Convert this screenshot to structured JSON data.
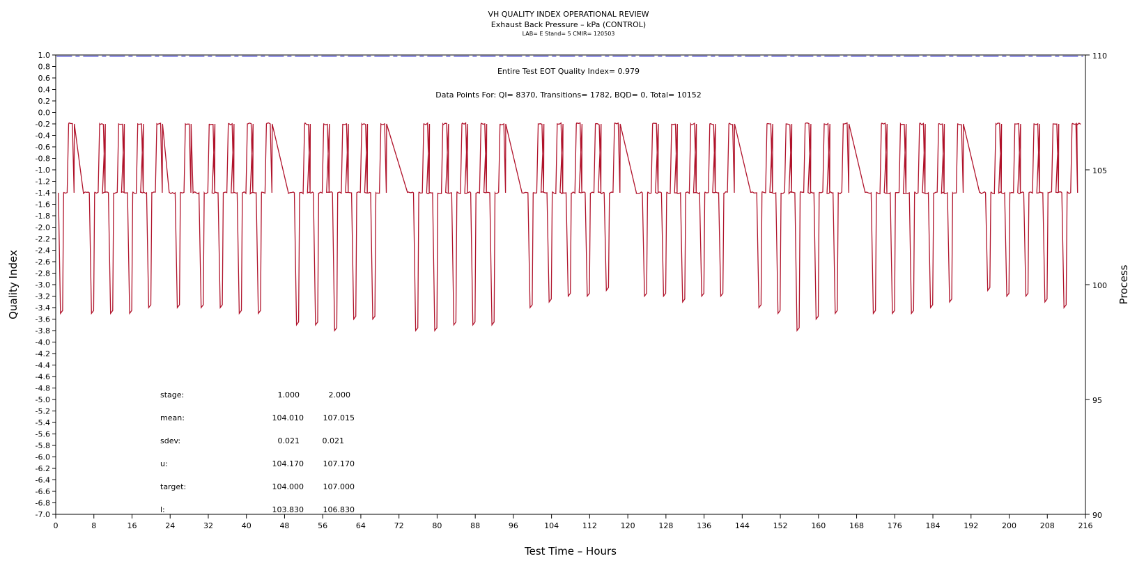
{
  "chart_data": {
    "type": "line",
    "title": "VH QUALITY INDEX OPERATIONAL REVIEW",
    "subtitle": "Exhaust Back Pressure – kPa (CONTROL)",
    "meta": "LAB= E Stand= 5 CMIR= 120503",
    "xlabel": "Test Time – Hours",
    "ylabel": "Quality Index",
    "y2label": "Process",
    "xlim": [
      0,
      216
    ],
    "ylim": [
      -7.0,
      1.0
    ],
    "y2lim": [
      90,
      110
    ],
    "x_ticks": [
      "0",
      "8",
      "16",
      "24",
      "32",
      "40",
      "48",
      "56",
      "64",
      "72",
      "80",
      "88",
      "96",
      "104",
      "112",
      "120",
      "128",
      "136",
      "144",
      "152",
      "160",
      "168",
      "176",
      "184",
      "192",
      "200",
      "208",
      "216"
    ],
    "y_ticks": [
      "1.0",
      "0.8",
      "0.6",
      "0.4",
      "0.2",
      "0.0",
      "-0.2",
      "-0.4",
      "-0.6",
      "-0.8",
      "-1.0",
      "-1.2",
      "-1.4",
      "-1.6",
      "-1.8",
      "-2.0",
      "-2.2",
      "-2.4",
      "-2.6",
      "-2.8",
      "-3.0",
      "-3.2",
      "-3.4",
      "-3.6",
      "-3.8",
      "-4.0",
      "-4.2",
      "-4.4",
      "-4.6",
      "-4.8",
      "-5.0",
      "-5.2",
      "-5.4",
      "-5.6",
      "-5.8",
      "-6.0",
      "-6.2",
      "-6.4",
      "-6.6",
      "-6.8",
      "-7.0"
    ],
    "y2_ticks": [
      "110",
      "105",
      "100",
      "95",
      "90"
    ],
    "annotations": {
      "quality_index": "Entire Test EOT Quality Index=   0.979",
      "data_points": "Data Points For: QI=  8370, Transitions=  1782, BQD=     0, Total= 10152"
    },
    "quality_index_line": {
      "value": 0.979,
      "color": "#3b3bd6",
      "style": "dashed"
    },
    "process_series": {
      "color": "#b0132b",
      "low_level": 104.0,
      "high_level": 107.0,
      "cycles": [
        {
          "start": 0.5,
          "drop": 3.5,
          "rise": 2.5
        },
        {
          "start": 7.0,
          "drop": 3.5,
          "rise": 2.5
        },
        {
          "start": 11.0,
          "drop": 3.5,
          "rise": 2.5
        },
        {
          "start": 15.0,
          "drop": 3.5,
          "rise": 2.5
        },
        {
          "start": 19.0,
          "drop": 3.4,
          "rise": 2.5
        },
        {
          "start": 25.0,
          "drop": 3.4,
          "rise": 2.5
        },
        {
          "start": 30.0,
          "drop": 3.4,
          "rise": 2.5
        },
        {
          "start": 34.0,
          "drop": 3.4,
          "rise": 2.5
        },
        {
          "start": 38.0,
          "drop": 3.5,
          "rise": 2.5
        },
        {
          "start": 42.0,
          "drop": 3.5,
          "rise": 2.5
        },
        {
          "start": 50.0,
          "drop": 3.7,
          "rise": 2.5
        },
        {
          "start": 54.0,
          "drop": 3.7,
          "rise": 2.5
        },
        {
          "start": 58.0,
          "drop": 3.8,
          "rise": 2.5
        },
        {
          "start": 62.0,
          "drop": 3.6,
          "rise": 2.5
        },
        {
          "start": 66.0,
          "drop": 3.6,
          "rise": 2.5
        },
        {
          "start": 75.0,
          "drop": 3.8,
          "rise": 2.5
        },
        {
          "start": 79.0,
          "drop": 3.8,
          "rise": 2.5
        },
        {
          "start": 83.0,
          "drop": 3.7,
          "rise": 2.5
        },
        {
          "start": 87.0,
          "drop": 3.7,
          "rise": 2.5
        },
        {
          "start": 91.0,
          "drop": 3.7,
          "rise": 2.5
        },
        {
          "start": 99.0,
          "drop": 3.4,
          "rise": 2.5
        },
        {
          "start": 103.0,
          "drop": 3.3,
          "rise": 2.5
        },
        {
          "start": 107.0,
          "drop": 3.2,
          "rise": 2.5
        },
        {
          "start": 111.0,
          "drop": 3.2,
          "rise": 2.5
        },
        {
          "start": 115.0,
          "drop": 3.1,
          "rise": 2.5
        },
        {
          "start": 123.0,
          "drop": 3.2,
          "rise": 2.5
        },
        {
          "start": 127.0,
          "drop": 3.2,
          "rise": 2.5
        },
        {
          "start": 131.0,
          "drop": 3.3,
          "rise": 2.5
        },
        {
          "start": 135.0,
          "drop": 3.2,
          "rise": 2.5
        },
        {
          "start": 139.0,
          "drop": 3.2,
          "rise": 2.5
        },
        {
          "start": 147.0,
          "drop": 3.4,
          "rise": 2.5
        },
        {
          "start": 151.0,
          "drop": 3.5,
          "rise": 2.5
        },
        {
          "start": 155.0,
          "drop": 3.8,
          "rise": 2.5
        },
        {
          "start": 159.0,
          "drop": 3.6,
          "rise": 2.5
        },
        {
          "start": 163.0,
          "drop": 3.5,
          "rise": 2.5
        },
        {
          "start": 171.0,
          "drop": 3.5,
          "rise": 2.5
        },
        {
          "start": 175.0,
          "drop": 3.5,
          "rise": 2.5
        },
        {
          "start": 179.0,
          "drop": 3.5,
          "rise": 2.5
        },
        {
          "start": 183.0,
          "drop": 3.4,
          "rise": 2.5
        },
        {
          "start": 187.0,
          "drop": 3.3,
          "rise": 2.5
        },
        {
          "start": 195.0,
          "drop": 3.1,
          "rise": 2.5
        },
        {
          "start": 199.0,
          "drop": 3.2,
          "rise": 2.5
        },
        {
          "start": 203.0,
          "drop": 3.2,
          "rise": 2.5
        },
        {
          "start": 207.0,
          "drop": 3.3,
          "rise": 2.5
        },
        {
          "start": 211.0,
          "drop": 3.4,
          "rise": 2.5
        }
      ]
    },
    "stats_table": {
      "rows": [
        {
          "label": "stage:",
          "v1": "1.000",
          "v2": "2.000"
        },
        {
          "label": "mean:",
          "v1": "104.010",
          "v2": "107.015"
        },
        {
          "label": "sdev:",
          "v1": "0.021",
          "v2": "0.021"
        },
        {
          "label": "u:",
          "v1": "104.170",
          "v2": "107.170"
        },
        {
          "label": "target:",
          "v1": "104.000",
          "v2": "107.000"
        },
        {
          "label": "l:",
          "v1": "103.830",
          "v2": "106.830"
        }
      ]
    }
  }
}
